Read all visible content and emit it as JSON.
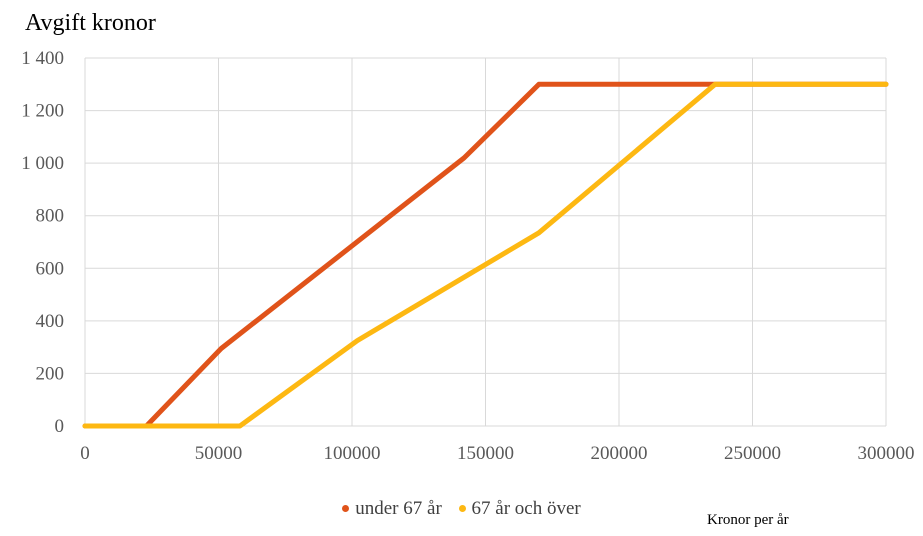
{
  "chart_data": {
    "type": "line",
    "title": "Avgift kronor",
    "xlabel": "Kronor per år",
    "ylabel": "",
    "xlim": [
      0,
      300000
    ],
    "ylim": [
      0,
      1400
    ],
    "x_ticks": [
      0,
      50000,
      100000,
      150000,
      200000,
      250000,
      300000
    ],
    "x_tick_labels": [
      "0",
      "50000",
      "100000",
      "150000",
      "200000",
      "250000",
      "300000"
    ],
    "y_ticks": [
      0,
      200,
      400,
      600,
      800,
      1000,
      1200,
      1400
    ],
    "y_tick_labels": [
      "0",
      "200",
      "400",
      "600",
      "800",
      "1 000",
      "1 200",
      "1 400"
    ],
    "grid": true,
    "legend_position": "bottom",
    "series": [
      {
        "name": "under 67 år",
        "color": "#e0531a",
        "points": [
          [
            0,
            0
          ],
          [
            23000,
            0
          ],
          [
            51000,
            295
          ],
          [
            142000,
            1020
          ],
          [
            170000,
            1300
          ],
          [
            300000,
            1300
          ]
        ]
      },
      {
        "name": "67 år och över",
        "color": "#fdb812",
        "points": [
          [
            0,
            0
          ],
          [
            58000,
            0
          ],
          [
            102000,
            325
          ],
          [
            170000,
            735
          ],
          [
            236000,
            1300
          ],
          [
            300000,
            1300
          ]
        ]
      }
    ]
  }
}
